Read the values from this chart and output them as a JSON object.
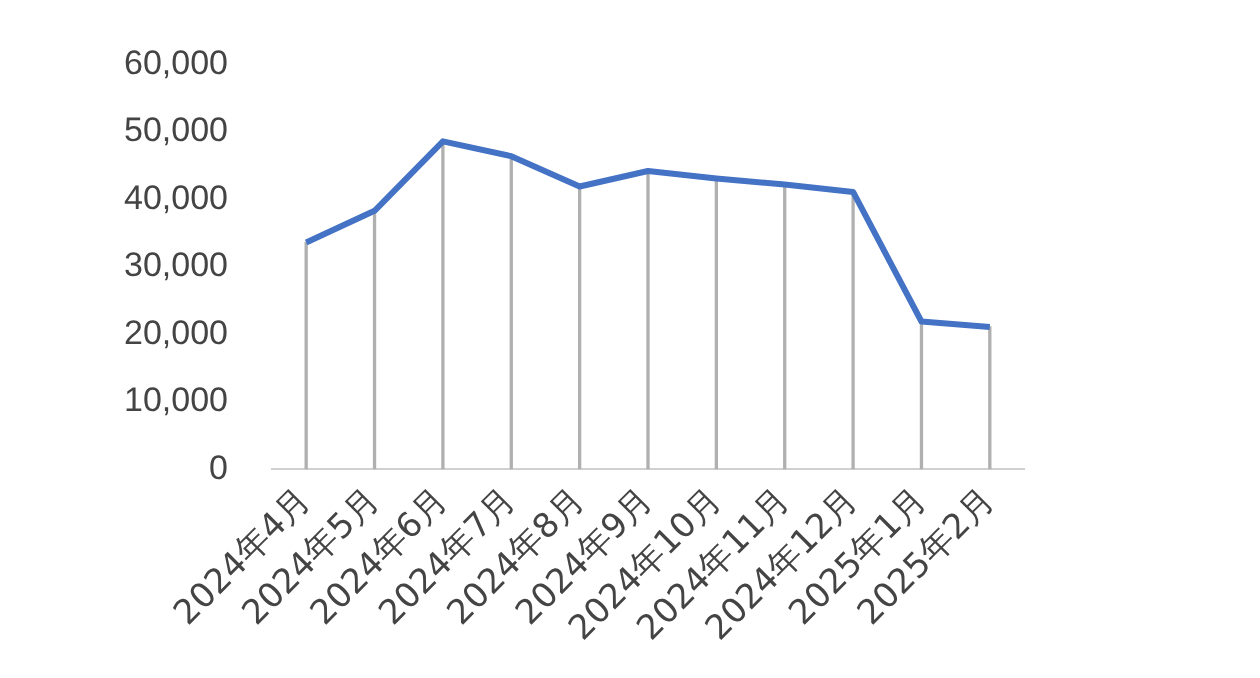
{
  "chart_data": {
    "type": "line",
    "categories": [
      "2024年4月",
      "2024年5月",
      "2024年6月",
      "2024年7月",
      "2024年8月",
      "2024年9月",
      "2024年10月",
      "2024年11月",
      "2024年12月",
      "2025年1月",
      "2025年2月"
    ],
    "series": [
      {
        "type": "bar",
        "color": "#b0b0b0",
        "values": [
          33600,
          38300,
          48600,
          46400,
          41900,
          44200,
          43100,
          42200,
          41100,
          21900,
          21100
        ]
      },
      {
        "color": "#4472c4",
        "values": [
          33600,
          38300,
          48600,
          46400,
          41900,
          44200,
          43100,
          42200,
          41100,
          21900,
          21100
        ]
      }
    ],
    "ylim": [
      0,
      60000
    ],
    "yticks": [
      0,
      {
        "value": 10000,
        "label": "10,000"
      },
      {
        "value": 20000,
        "label": "20,000"
      },
      {
        "value": 30000,
        "label": "30,000"
      },
      {
        "value": 40000,
        "label": "40,000"
      },
      {
        "value": 50000,
        "label": "50,000"
      },
      {
        "value": 60000,
        "label": "60,000"
      }
    ],
    "grid": false,
    "legend": false,
    "marker": "none",
    "line_style": "solid"
  }
}
